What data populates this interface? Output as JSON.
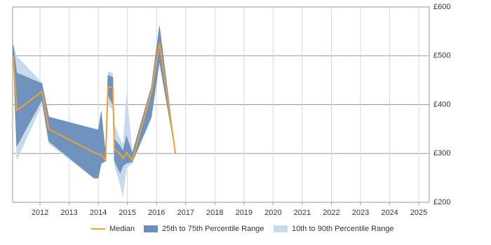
{
  "chart_data": {
    "type": "band-line",
    "x": [
      2011.08,
      2011.2,
      2012.07,
      2012.3,
      2013.85,
      2014.0,
      2014.1,
      2014.25,
      2014.33,
      2014.5,
      2014.55,
      2014.75,
      2014.85,
      2014.97,
      2015.17,
      2015.82,
      2016.1,
      2016.65
    ],
    "xlim": [
      2011.06,
      2025.36
    ],
    "xticks": [
      2012,
      2013,
      2014,
      2015,
      2016,
      2017,
      2018,
      2019,
      2020,
      2021,
      2022,
      2023,
      2024,
      2025
    ],
    "ylim": [
      200,
      600
    ],
    "yticks": [
      {
        "value": 200,
        "label": "£200"
      },
      {
        "value": 300,
        "label": "£300"
      },
      {
        "value": 400,
        "label": "£400"
      },
      {
        "value": 500,
        "label": "£500"
      },
      {
        "value": 600,
        "label": "£600"
      }
    ],
    "grid": true,
    "legend": "bottom",
    "series": [
      {
        "name": "Median",
        "color": "#f0a030",
        "values": [
          500,
          388,
          427,
          350,
          302,
          299,
          297,
          286,
          436,
          436,
          309,
          299,
          289,
          302,
          286,
          426,
          526,
          300
        ]
      },
      {
        "name": "25th to 75th Percentile Range",
        "color": "#6b8fbd",
        "low": [
          500,
          315,
          410,
          325,
          250,
          250,
          280,
          285,
          420,
          400,
          285,
          260,
          275,
          280,
          283,
          375,
          490,
          300
        ],
        "high": [
          522,
          465,
          443,
          375,
          350,
          348,
          385,
          300,
          460,
          456,
          330,
          315,
          305,
          335,
          300,
          435,
          560,
          300
        ]
      },
      {
        "name": "10th to 90th Percentile Range",
        "color": "#c9d9ec",
        "low": [
          480,
          285,
          400,
          320,
          248,
          248,
          278,
          283,
          400,
          390,
          275,
          235,
          210,
          270,
          280,
          370,
          480,
          300
        ],
        "high": [
          522,
          500,
          445,
          375,
          352,
          350,
          390,
          300,
          468,
          465,
          360,
          330,
          320,
          425,
          305,
          440,
          565,
          300
        ]
      }
    ]
  }
}
